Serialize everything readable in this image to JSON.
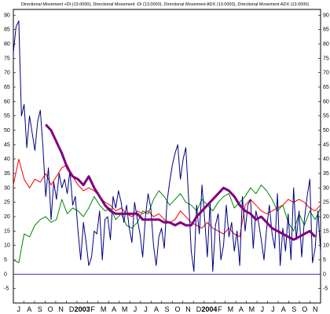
{
  "chart_data": {
    "type": "line",
    "title": "Directional Movement +DI (13.0000), Directional Movement -DI (13.0000), Directional Movement ADX (13.0000), Directional Movement ADX (13.0000)",
    "xlabel": "",
    "ylabel": "",
    "ylim": [
      -10,
      92
    ],
    "yticks": [
      -5,
      0,
      5,
      10,
      15,
      20,
      25,
      30,
      35,
      40,
      45,
      50,
      55,
      60,
      65,
      70,
      75,
      80,
      85,
      90
    ],
    "x_tick_labels": [
      "J",
      "A",
      "S",
      "O",
      "N",
      "D",
      "2003",
      "F",
      "M",
      "A",
      "M",
      "J",
      "J",
      "A",
      "S",
      "O",
      "N",
      "D",
      "2004",
      "F",
      "M",
      "A",
      "M",
      "J",
      "J",
      "A",
      "S",
      "O",
      "N"
    ],
    "x_year_labels": [
      "2003",
      "2004"
    ],
    "grid": false,
    "reference_lines": [
      {
        "y": 0,
        "color": "#3333cc"
      }
    ],
    "colors": {
      "red": "#ff0000",
      "green": "#008800",
      "blue": "#000080",
      "purple": "#800080",
      "zero": "#3333cc"
    },
    "series": [
      {
        "color": "red",
        "x": [
          0,
          0.5,
          1,
          1.5,
          2,
          2.5,
          3,
          3.5,
          4,
          4.5,
          5,
          5.5,
          6,
          6.5,
          7,
          7.5,
          8,
          8.5,
          9,
          9.5,
          10,
          10.5,
          11,
          11.5,
          12,
          12.5,
          13,
          13.5,
          14,
          14.5,
          15,
          15.5,
          16,
          16.5,
          17,
          17.5,
          18,
          18.5,
          19,
          19.5,
          20,
          20.5,
          21,
          21.5,
          22,
          22.5,
          23,
          23.5,
          24,
          24.5,
          25,
          25.5,
          26,
          26.5,
          27,
          27.5,
          28,
          28.5
        ],
        "values": [
          31,
          40,
          33,
          30,
          33,
          32,
          35,
          31,
          34,
          37,
          38,
          34,
          31,
          29,
          30,
          29,
          27,
          25,
          24,
          22,
          23,
          21,
          20,
          22,
          21,
          22,
          20,
          21,
          19,
          18,
          19,
          22,
          20,
          18,
          17,
          16,
          18,
          16,
          15,
          14,
          16,
          14,
          13,
          24,
          26,
          24,
          22,
          21,
          22,
          23,
          24,
          26,
          25,
          26,
          25,
          23,
          22,
          24
        ]
      },
      {
        "color": "green",
        "x": [
          0,
          0.5,
          1,
          1.5,
          2,
          2.5,
          3,
          3.5,
          4,
          4.5,
          5,
          5.5,
          6,
          6.5,
          7,
          7.5,
          8,
          8.5,
          9,
          9.5,
          10,
          10.5,
          11,
          11.5,
          12,
          12.5,
          13,
          13.5,
          14,
          14.5,
          15,
          15.5,
          16,
          16.5,
          17,
          17.5,
          18,
          18.5,
          19,
          19.5,
          20,
          20.5,
          21,
          21.5,
          22,
          22.5,
          23,
          23.5,
          24,
          24.5,
          25,
          25.5,
          26,
          26.5,
          27,
          27.5,
          28,
          28.5
        ],
        "values": [
          5,
          4,
          14,
          13,
          17,
          19,
          20,
          18,
          19,
          26,
          21,
          23,
          22,
          20,
          23,
          27,
          24,
          22,
          23,
          19,
          21,
          17,
          16,
          18,
          22,
          21,
          26,
          29,
          27,
          24,
          26,
          28,
          25,
          24,
          22,
          26,
          24,
          22,
          25,
          27,
          28,
          23,
          25,
          27,
          30,
          28,
          31,
          29,
          26,
          22,
          24,
          18,
          15,
          21,
          17,
          22,
          19,
          23
        ]
      },
      {
        "color": "blue",
        "x": [
          0,
          0.25,
          0.5,
          0.75,
          1,
          1.25,
          1.5,
          1.75,
          2,
          2.25,
          2.5,
          2.75,
          3,
          3.25,
          3.5,
          3.75,
          4,
          4.25,
          4.5,
          4.75,
          5,
          5.25,
          5.5,
          5.75,
          6,
          6.25,
          6.5,
          6.75,
          7,
          7.25,
          7.5,
          7.75,
          8,
          8.25,
          8.5,
          8.75,
          9,
          9.25,
          9.5,
          9.75,
          10,
          10.25,
          10.5,
          10.75,
          11,
          11.25,
          11.5,
          11.75,
          12,
          12.25,
          12.5,
          12.75,
          13,
          13.25,
          13.5,
          13.75,
          14,
          14.25,
          14.5,
          14.75,
          15,
          15.25,
          15.5,
          15.75,
          16,
          16.25,
          16.5,
          16.75,
          17,
          17.25,
          17.5,
          17.75,
          18,
          18.25,
          18.5,
          18.75,
          19,
          19.25,
          19.5,
          19.75,
          20,
          20.25,
          20.5,
          20.75,
          21,
          21.25,
          21.5,
          21.75,
          22,
          22.25,
          22.5,
          22.75,
          23,
          23.25,
          23.5,
          23.75,
          24,
          24.25,
          24.5,
          24.75,
          25,
          25.25,
          25.5,
          25.75,
          26,
          26.25,
          26.5,
          26.75,
          27,
          27.25,
          27.5,
          27.75,
          28,
          28.25,
          28.5
        ],
        "values": [
          77,
          86,
          88,
          55,
          59,
          44,
          55,
          49,
          43,
          53,
          57,
          44,
          27,
          37,
          19,
          32,
          26,
          35,
          30,
          33,
          28,
          36,
          24,
          27,
          15,
          5,
          18,
          11,
          3,
          6,
          15,
          14,
          22,
          5,
          19,
          20,
          12,
          27,
          23,
          29,
          25,
          18,
          24,
          16,
          11,
          25,
          19,
          14,
          6,
          20,
          28,
          23,
          10,
          3,
          13,
          16,
          9,
          25,
          32,
          38,
          42,
          45,
          33,
          40,
          44,
          27,
          8,
          1,
          24,
          14,
          31,
          19,
          6,
          25,
          1,
          17,
          21,
          5,
          10,
          24,
          13,
          18,
          8,
          15,
          3,
          27,
          15,
          24,
          26,
          9,
          22,
          18,
          12,
          5,
          16,
          24,
          14,
          9,
          28,
          3,
          16,
          8,
          21,
          5,
          30,
          12,
          22,
          6,
          19,
          27,
          33,
          4,
          9,
          22,
          8
        ]
      },
      {
        "color": "purple",
        "x": [
          3,
          3.5,
          4,
          4.5,
          5,
          5.5,
          6,
          6.5,
          7,
          7.5,
          8,
          8.5,
          9,
          9.5,
          10,
          10.5,
          11,
          11.5,
          12,
          12.5,
          13,
          13.5,
          14,
          14.5,
          15,
          15.5,
          16,
          16.5,
          17,
          17.5,
          18,
          18.5,
          19,
          19.5,
          20,
          20.5,
          21,
          21.5,
          22,
          22.5,
          23,
          23.5,
          24,
          24.5,
          25,
          25.5,
          26,
          26.5,
          27,
          27.5,
          28
        ],
        "values": [
          52,
          50,
          46,
          42,
          37,
          34,
          33,
          31,
          34,
          30,
          27,
          24,
          22,
          21,
          21,
          21,
          21,
          21,
          19,
          19,
          19,
          19,
          18,
          18,
          17,
          18,
          17,
          17,
          20,
          22,
          24,
          26,
          28,
          30,
          29,
          27,
          24,
          22,
          21,
          19,
          20,
          18,
          16,
          15,
          14,
          13,
          12,
          13,
          14,
          15,
          13
        ]
      }
    ]
  }
}
